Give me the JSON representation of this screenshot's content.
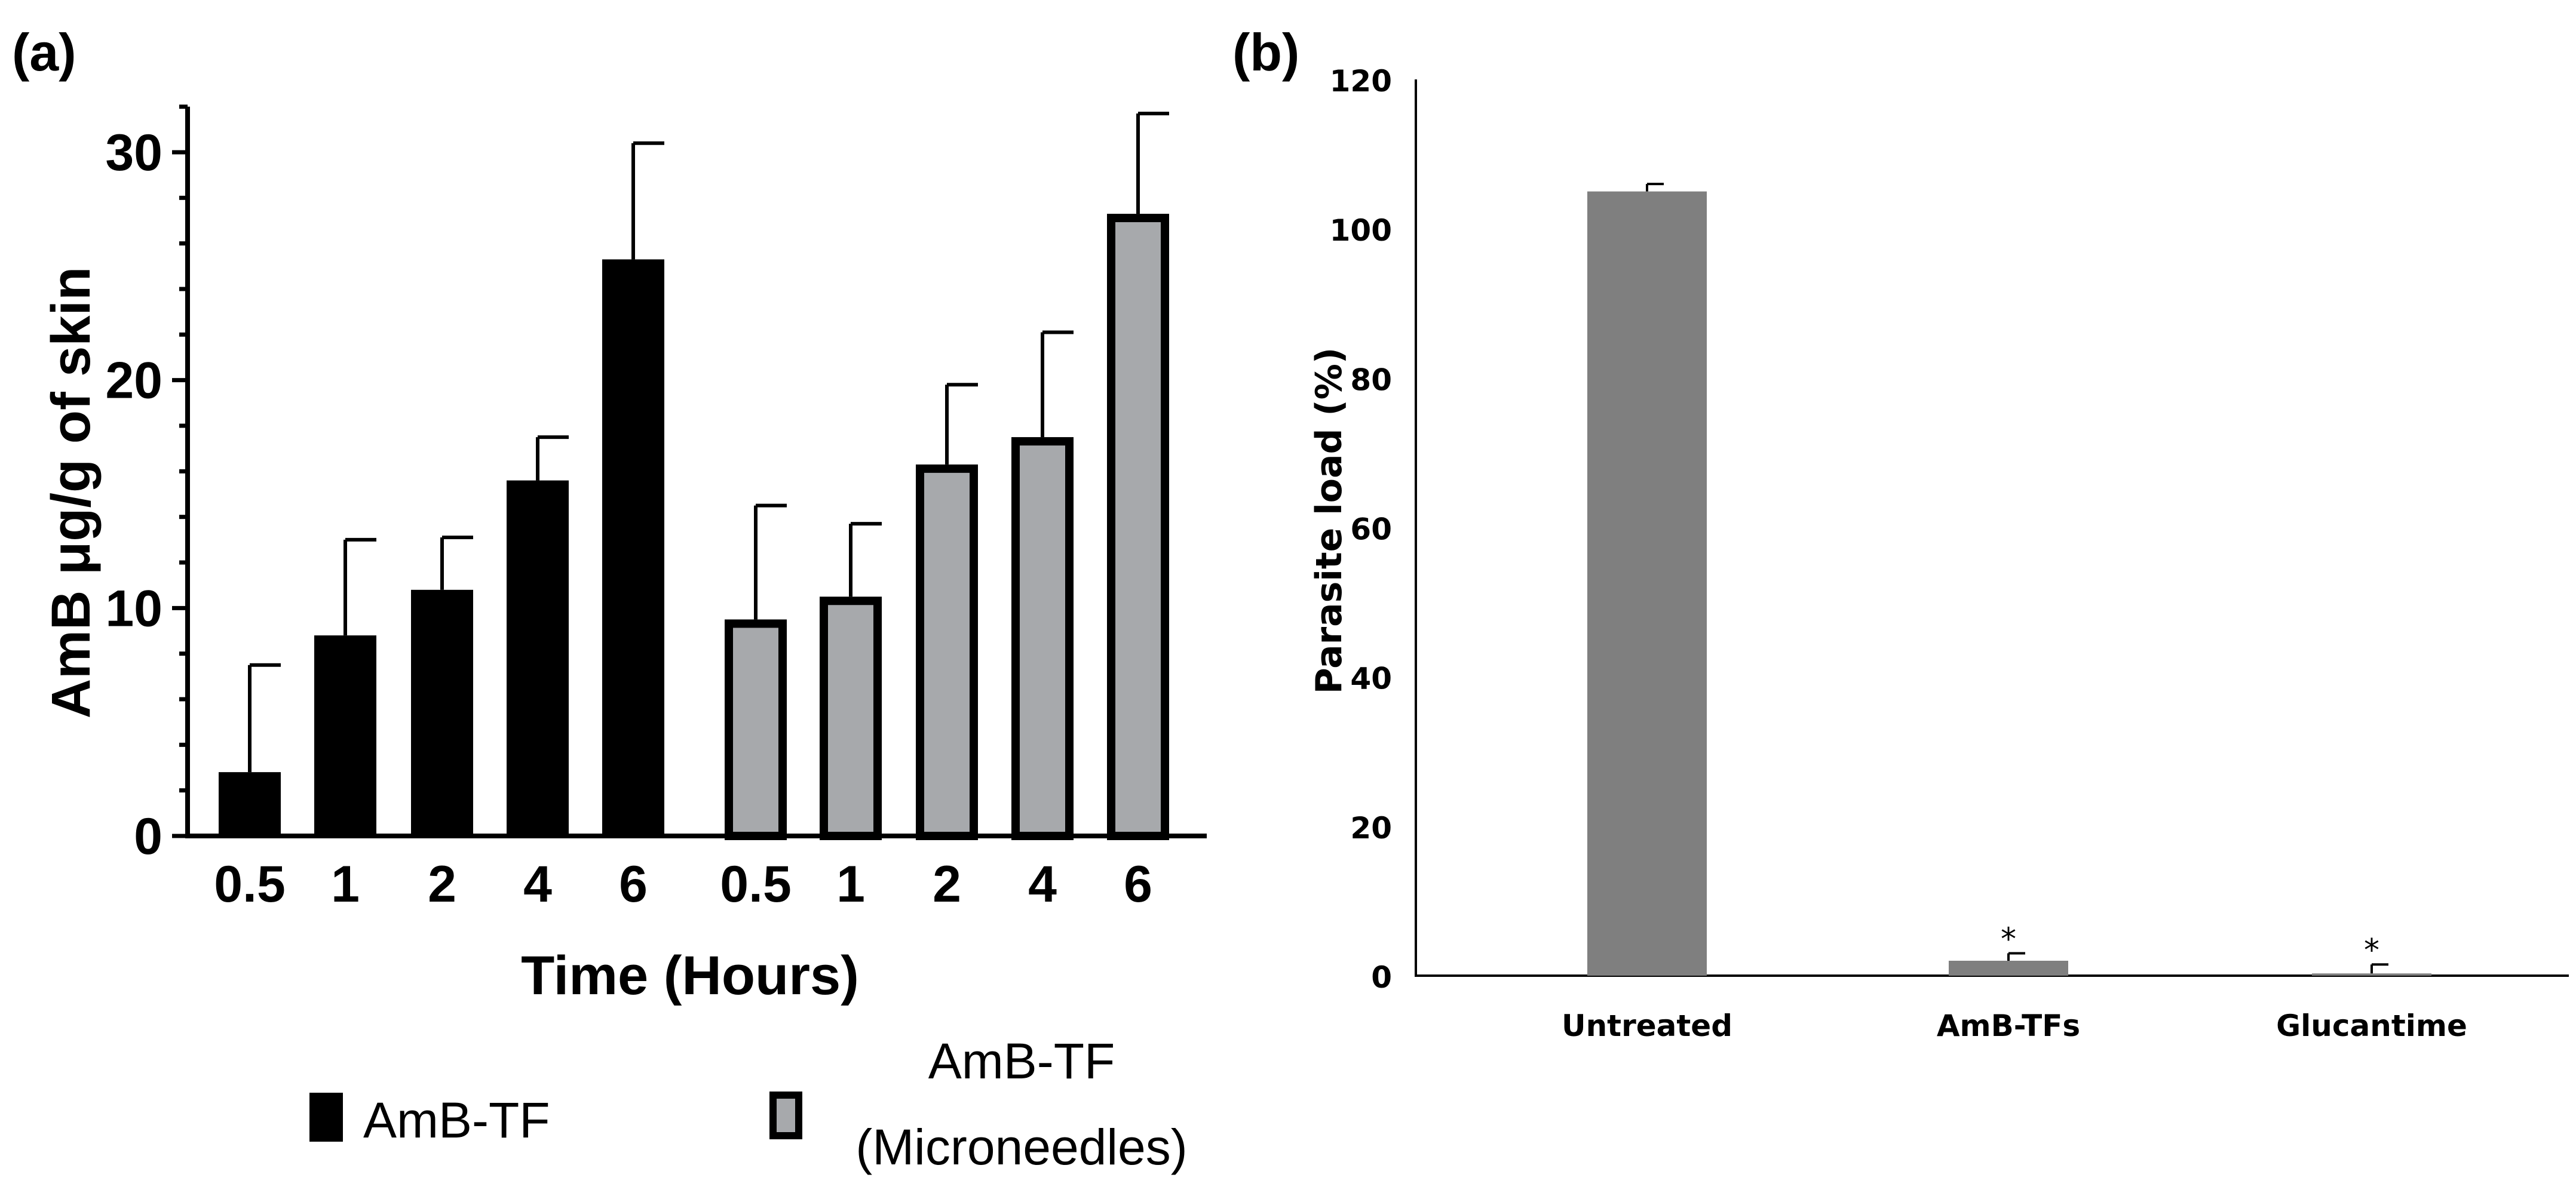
{
  "chart_data": [
    {
      "panel_label": "(a)",
      "type": "bar",
      "title": "",
      "xlabel": "Time (Hours)",
      "ylabel": "AmB μg/g of skin",
      "ylim": [
        0,
        32
      ],
      "yticks": [
        "0",
        "10",
        "20",
        "30"
      ],
      "grid": false,
      "legend_position": "bottom",
      "groups": [
        {
          "series": "AmB-TF",
          "categories": [
            "0.5",
            "1",
            "2",
            "4",
            "6"
          ],
          "values": [
            2.8,
            8.8,
            10.8,
            15.6,
            25.3
          ],
          "error_upper": [
            7.5,
            13.0,
            13.1,
            17.5,
            30.4
          ]
        },
        {
          "series": "AmB-TF (Microneedles)",
          "categories": [
            "0.5",
            "1",
            "2",
            "4",
            "6"
          ],
          "values": [
            9.5,
            10.5,
            16.3,
            17.5,
            27.3
          ],
          "error_upper": [
            14.5,
            13.7,
            19.8,
            22.1,
            31.7
          ]
        }
      ],
      "legend": [
        {
          "label": "AmB-TF",
          "fill": "#000000",
          "stroke": "#000000"
        },
        {
          "label_line1": "AmB-TF",
          "label_line2": "(Microneedles)",
          "fill": "#a7a9ac",
          "stroke": "#000000"
        }
      ]
    },
    {
      "panel_label": "(b)",
      "type": "bar",
      "title": "",
      "xlabel": "",
      "ylabel": "Parasite load (%)",
      "ylim": [
        0,
        120
      ],
      "yticks": [
        "0",
        "20",
        "40",
        "60",
        "80",
        "100",
        "120"
      ],
      "grid": false,
      "categories": [
        "Untreated",
        "AmB-TFs",
        "Glucantime"
      ],
      "values": [
        105,
        2,
        0.3
      ],
      "error_upper": [
        106,
        3,
        1.5
      ],
      "annotations": [
        "",
        "*",
        "*"
      ],
      "bar_color": "#7f7f7f"
    }
  ]
}
